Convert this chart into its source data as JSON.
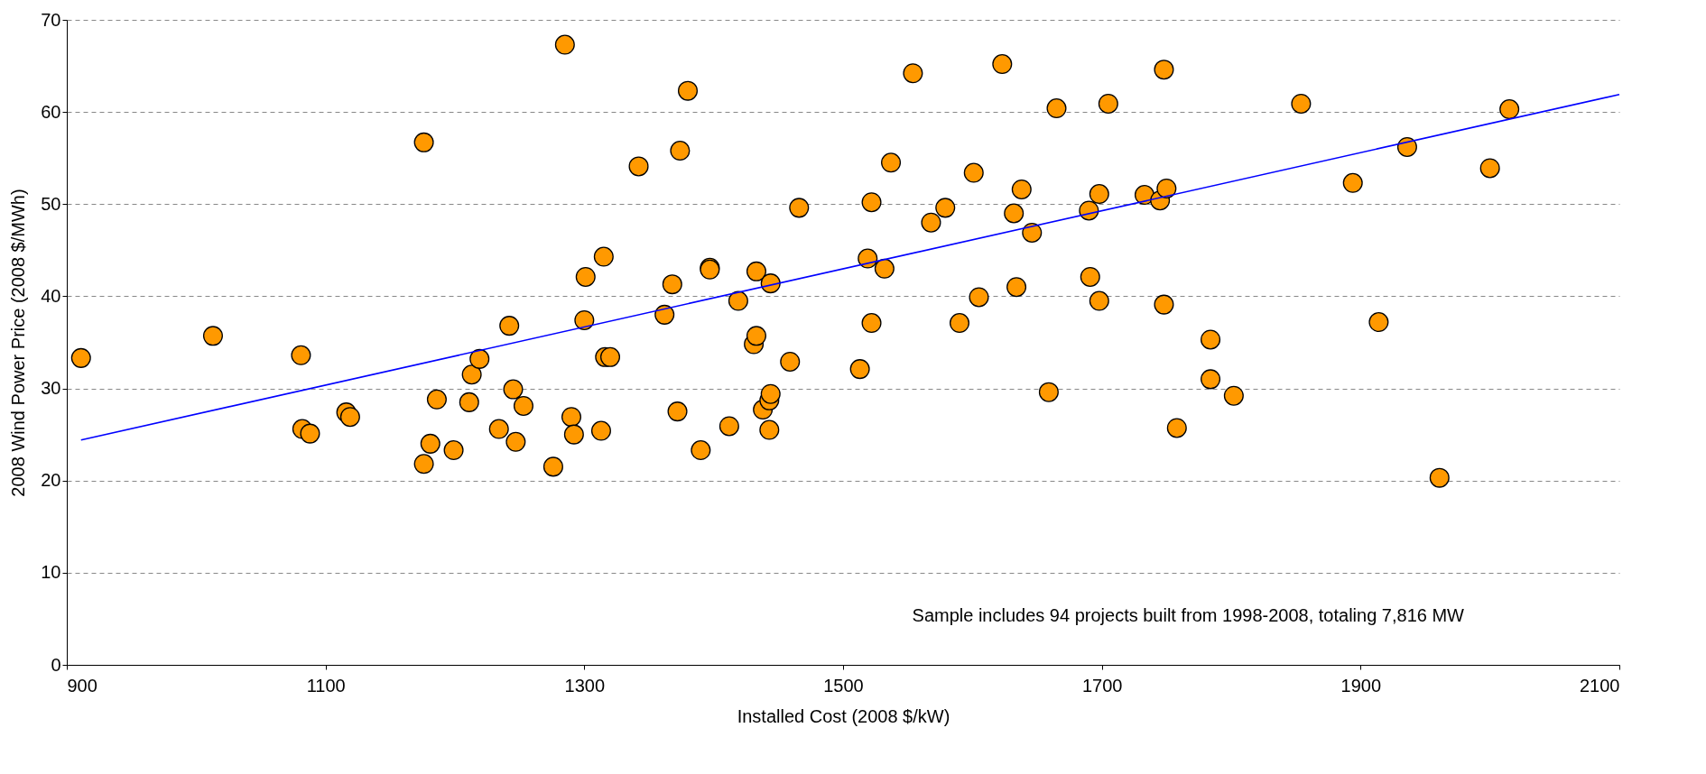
{
  "chart_data": {
    "type": "scatter",
    "xlabel": "Installed Cost (2008 $/kW)",
    "ylabel": "2008 Wind Power Price (2008 $/MWh)",
    "annotations": [
      "Sample includes 94 projects built from 1998-2008, totaling 7,816 MW"
    ],
    "xlim": [
      900,
      2100
    ],
    "xticks": [
      900,
      1100,
      1300,
      1500,
      1700,
      1900,
      2100
    ],
    "ylim": [
      0,
      70
    ],
    "yticks": [
      0,
      10,
      20,
      30,
      40,
      50,
      60,
      70
    ],
    "grid": "y",
    "series": [
      {
        "type": "scatter",
        "color": "#ff9900",
        "marker": "circle",
        "x": [
          911,
          1013,
          1081,
          1082,
          1088,
          1116,
          1119,
          1176,
          1176,
          1181,
          1186,
          1199,
          1211,
          1213,
          1219,
          1234,
          1242,
          1245,
          1247,
          1253,
          1276,
          1285,
          1290,
          1292,
          1301,
          1300,
          1313,
          1315,
          1316,
          1320,
          1342,
          1362,
          1368,
          1372,
          1374,
          1380,
          1390,
          1397,
          1397,
          1412,
          1419,
          1431,
          1433,
          1433,
          1438,
          1443,
          1444,
          1443,
          1444,
          1459,
          1466,
          1513,
          1519,
          1522,
          1522,
          1532,
          1537,
          1554,
          1568,
          1579,
          1590,
          1601,
          1605,
          1623,
          1632,
          1634,
          1638,
          1646,
          1659,
          1665,
          1690,
          1691,
          1698,
          1698,
          1705,
          1733,
          1745,
          1750,
          1748,
          1748,
          1758,
          1784,
          1784,
          1802,
          1854,
          1894,
          1914,
          1936,
          1961,
          2000,
          2015
        ],
        "values": [
          33.3,
          35.7,
          33.6,
          25.6,
          25.1,
          27.4,
          26.9,
          56.7,
          21.8,
          24.0,
          28.8,
          23.3,
          28.5,
          31.5,
          33.2,
          25.6,
          36.8,
          29.9,
          24.2,
          28.1,
          21.5,
          67.3,
          26.9,
          25.0,
          42.1,
          37.4,
          25.4,
          44.3,
          33.4,
          33.4,
          54.1,
          38.0,
          41.3,
          27.5,
          55.8,
          62.3,
          23.3,
          43.1,
          42.9,
          25.9,
          39.5,
          34.8,
          42.7,
          35.7,
          27.7,
          28.7,
          29.4,
          25.5,
          41.4,
          32.9,
          49.6,
          32.1,
          44.1,
          37.1,
          50.2,
          43.0,
          54.5,
          64.2,
          48.0,
          49.6,
          37.1,
          53.4,
          39.9,
          65.2,
          49.0,
          41.0,
          51.6,
          46.9,
          29.6,
          60.4,
          49.3,
          42.1,
          51.1,
          39.5,
          60.9,
          51.0,
          50.4,
          51.7,
          64.6,
          39.1,
          25.7,
          35.3,
          31.0,
          29.2,
          60.9,
          52.3,
          37.2,
          56.2,
          20.3,
          53.9,
          60.3
        ]
      },
      {
        "type": "line",
        "color": "#0000ff",
        "x": [
          911,
          2100
        ],
        "values": [
          24.4,
          61.9
        ]
      }
    ]
  }
}
